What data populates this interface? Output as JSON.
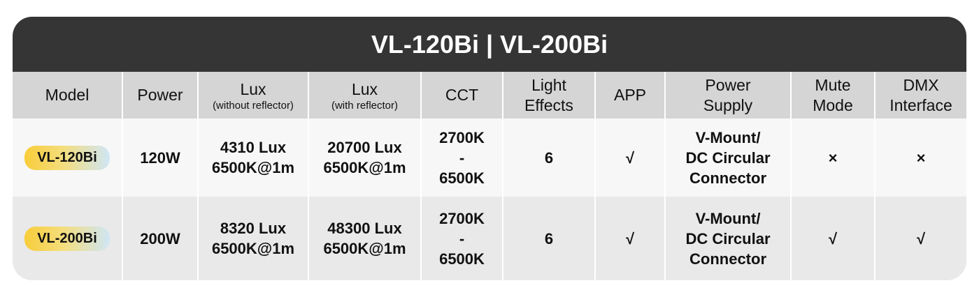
{
  "header": {
    "title": "VL-120Bi | VL-200Bi"
  },
  "table": {
    "headers": [
      {
        "lines": [
          "Model"
        ]
      },
      {
        "lines": [
          "Power"
        ]
      },
      {
        "lines": [
          "Lux"
        ],
        "note": "(without reflector)"
      },
      {
        "lines": [
          "Lux"
        ],
        "note": "(with reflector)"
      },
      {
        "lines": [
          "CCT"
        ]
      },
      {
        "lines": [
          "Light",
          "Effects"
        ]
      },
      {
        "lines": [
          "APP"
        ]
      },
      {
        "lines": [
          "Power",
          "Supply"
        ]
      },
      {
        "lines": [
          "Mute",
          "Mode"
        ]
      },
      {
        "lines": [
          "DMX",
          "Interface"
        ]
      }
    ],
    "rows": [
      [
        [
          "VL-120Bi"
        ],
        [
          "120W"
        ],
        [
          "4310 Lux",
          "6500K@1m"
        ],
        [
          "20700 Lux",
          "6500K@1m"
        ],
        [
          "2700K",
          "-",
          "6500K"
        ],
        [
          "6"
        ],
        [
          "√"
        ],
        [
          "V-Mount/",
          "DC Circular",
          "Connector"
        ],
        [
          "×"
        ],
        [
          "×"
        ]
      ],
      [
        [
          "VL-200Bi"
        ],
        [
          "200W"
        ],
        [
          "8320 Lux",
          "6500K@1m"
        ],
        [
          "48300 Lux",
          "6500K@1m"
        ],
        [
          "2700K",
          "-",
          "6500K"
        ],
        [
          "6"
        ],
        [
          "√"
        ],
        [
          "V-Mount/",
          "DC Circular",
          "Connector"
        ],
        [
          "√"
        ],
        [
          "√"
        ]
      ]
    ]
  }
}
